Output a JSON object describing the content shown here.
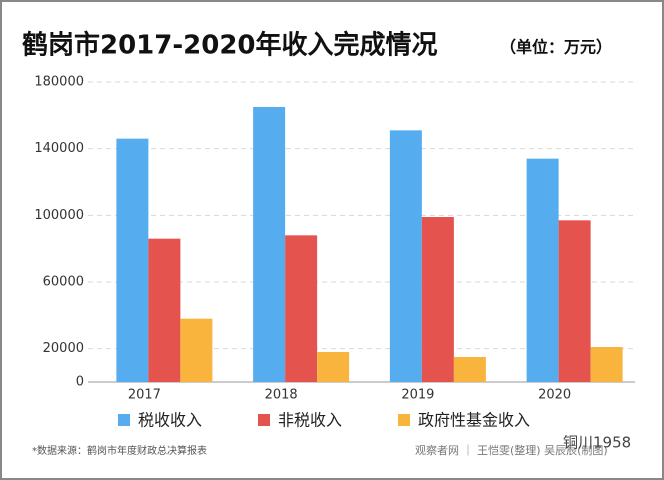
{
  "chart_data": {
    "type": "bar",
    "title": "鹤岗市2017-2020年收入完成情况",
    "subtitle": "（单位：万元）",
    "categories": [
      "2017",
      "2018",
      "2019",
      "2020"
    ],
    "series": [
      {
        "name": "税收收入",
        "color": "#55adf0",
        "values": [
          146000,
          165000,
          151000,
          134000
        ]
      },
      {
        "name": "非税收入",
        "color": "#e5534f",
        "values": [
          86000,
          88000,
          99000,
          97000
        ]
      },
      {
        "name": "政府性基金收入",
        "color": "#f9b43e",
        "values": [
          38000,
          18000,
          15000,
          21000
        ]
      }
    ],
    "ylim": [
      0,
      180000
    ],
    "yticks": [
      0,
      20000,
      60000,
      100000,
      140000,
      180000
    ],
    "grid": true,
    "source": "*数据来源：鹤岗市年度财政总决算报表",
    "credit": "观察者网 ｜ 王恺雯(整理) 吴辰辰(制图)",
    "watermark": "铜川1958"
  }
}
